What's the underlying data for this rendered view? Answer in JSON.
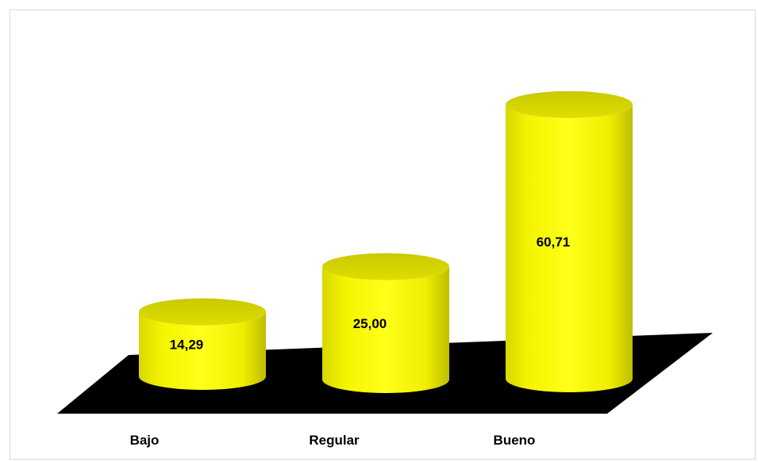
{
  "chart_data": {
    "type": "bar",
    "style": "3d-cylinder",
    "categories": [
      "Bajo",
      "Regular",
      "Bueno"
    ],
    "values": [
      14.29,
      25.0,
      60.71
    ],
    "value_labels": [
      "14,29",
      "25,00",
      "60,71"
    ],
    "title": "",
    "xlabel": "",
    "ylabel": "",
    "ylim": [
      0,
      65
    ],
    "grid": false,
    "legend": "none",
    "colors": {
      "bar": "#ffff00",
      "bar_shade": "#c8c800",
      "bar_top": "#d4d400",
      "floor": "#000000",
      "frame": "#d9d9d9"
    }
  }
}
